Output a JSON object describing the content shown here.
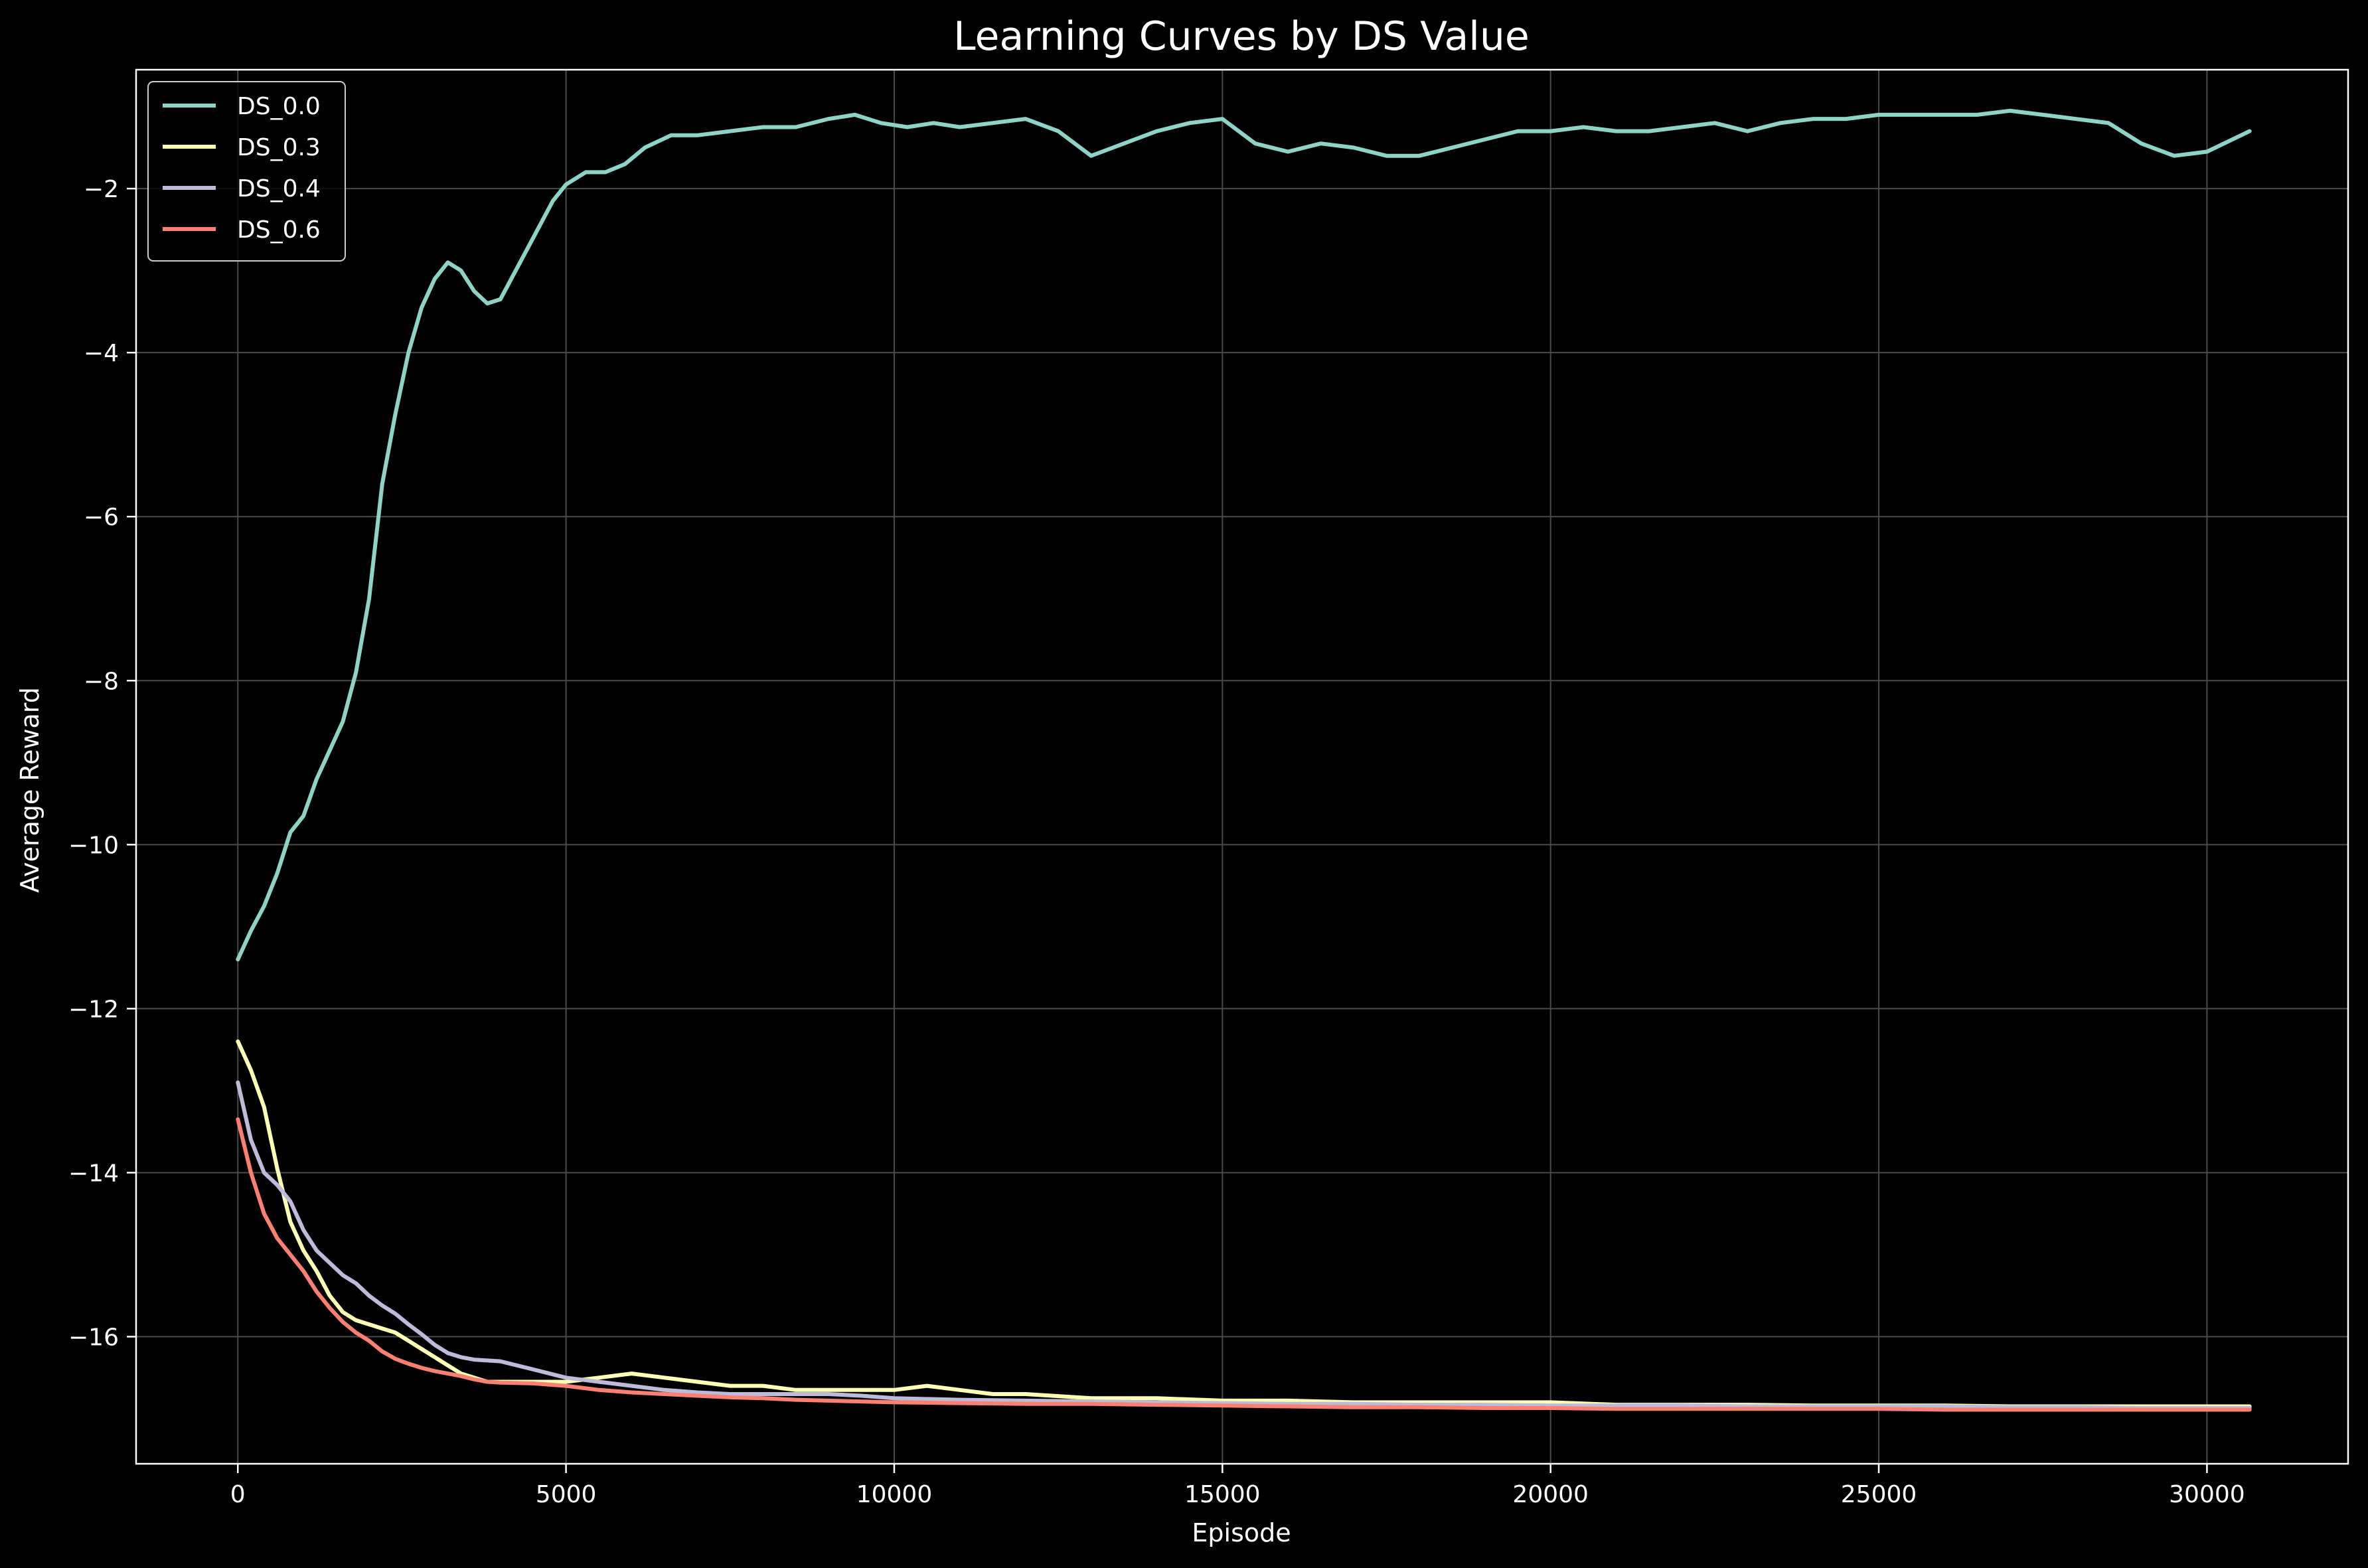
{
  "chart_data": {
    "type": "line",
    "title": "Learning Curves by DS Value",
    "xlabel": "Episode",
    "ylabel": "Average Reward",
    "xlim": [
      -1550,
      32150
    ],
    "ylim": [
      -17.55,
      -0.55
    ],
    "xticks": [
      0,
      5000,
      10000,
      15000,
      20000,
      25000,
      30000
    ],
    "yticks": [
      -16,
      -14,
      -12,
      -10,
      -8,
      -6,
      -4,
      -2
    ],
    "grid": true,
    "legend_position": "top-left",
    "background": "#000000",
    "series": [
      {
        "name": "DS_0.0",
        "color": "#8dd3c7",
        "x": [
          0,
          200,
          400,
          600,
          800,
          1000,
          1200,
          1400,
          1600,
          1800,
          2000,
          2200,
          2400,
          2600,
          2800,
          3000,
          3200,
          3400,
          3600,
          3800,
          4000,
          4200,
          4400,
          4600,
          4800,
          5000,
          5300,
          5600,
          5900,
          6200,
          6600,
          7000,
          7500,
          8000,
          8500,
          9000,
          9400,
          9800,
          10200,
          10600,
          11000,
          11500,
          12000,
          12500,
          13000,
          13500,
          14000,
          14500,
          15000,
          15500,
          16000,
          16500,
          17000,
          17500,
          18000,
          18500,
          19000,
          19500,
          20000,
          20500,
          21000,
          21500,
          22000,
          22500,
          23000,
          23500,
          24000,
          24500,
          25000,
          25500,
          26000,
          26500,
          27000,
          27500,
          28000,
          28500,
          29000,
          29500,
          30000,
          30650
        ],
        "y": [
          -11.4,
          -11.05,
          -10.75,
          -10.35,
          -9.85,
          -9.65,
          -9.2,
          -8.85,
          -8.5,
          -7.9,
          -7.0,
          -5.6,
          -4.75,
          -4.0,
          -3.45,
          -3.1,
          -2.9,
          -3.0,
          -3.25,
          -3.4,
          -3.35,
          -3.05,
          -2.75,
          -2.45,
          -2.15,
          -1.95,
          -1.8,
          -1.8,
          -1.7,
          -1.5,
          -1.35,
          -1.35,
          -1.3,
          -1.25,
          -1.25,
          -1.15,
          -1.1,
          -1.2,
          -1.25,
          -1.2,
          -1.25,
          -1.2,
          -1.15,
          -1.3,
          -1.6,
          -1.45,
          -1.3,
          -1.2,
          -1.15,
          -1.45,
          -1.55,
          -1.45,
          -1.5,
          -1.6,
          -1.6,
          -1.5,
          -1.4,
          -1.3,
          -1.3,
          -1.25,
          -1.3,
          -1.3,
          -1.25,
          -1.2,
          -1.3,
          -1.2,
          -1.15,
          -1.15,
          -1.1,
          -1.1,
          -1.1,
          -1.1,
          -1.05,
          -1.1,
          -1.15,
          -1.2,
          -1.45,
          -1.6,
          -1.55,
          -1.3
        ]
      },
      {
        "name": "DS_0.3",
        "color": "#ffffb3",
        "x": [
          0,
          200,
          400,
          600,
          800,
          1000,
          1200,
          1400,
          1600,
          1800,
          2000,
          2200,
          2400,
          2600,
          2800,
          3000,
          3200,
          3400,
          3600,
          3800,
          4000,
          4500,
          5000,
          5500,
          6000,
          6500,
          7000,
          7500,
          8000,
          8500,
          9000,
          9500,
          10000,
          10500,
          11000,
          11500,
          12000,
          13000,
          14000,
          15000,
          16000,
          17000,
          18000,
          19000,
          20000,
          21000,
          22000,
          23000,
          24000,
          25000,
          26000,
          27000,
          28000,
          29000,
          30000,
          30650
        ],
        "y": [
          -12.4,
          -12.75,
          -13.2,
          -13.95,
          -14.6,
          -14.95,
          -15.2,
          -15.5,
          -15.7,
          -15.8,
          -15.85,
          -15.9,
          -15.95,
          -16.05,
          -16.15,
          -16.25,
          -16.35,
          -16.45,
          -16.5,
          -16.55,
          -16.55,
          -16.55,
          -16.55,
          -16.5,
          -16.45,
          -16.5,
          -16.55,
          -16.6,
          -16.6,
          -16.65,
          -16.65,
          -16.65,
          -16.65,
          -16.6,
          -16.65,
          -16.7,
          -16.7,
          -16.75,
          -16.75,
          -16.78,
          -16.78,
          -16.8,
          -16.8,
          -16.8,
          -16.8,
          -16.83,
          -16.83,
          -16.83,
          -16.84,
          -16.84,
          -16.84,
          -16.85,
          -16.85,
          -16.85,
          -16.85,
          -16.85
        ]
      },
      {
        "name": "DS_0.4",
        "color": "#bebada",
        "x": [
          0,
          200,
          400,
          600,
          800,
          1000,
          1200,
          1400,
          1600,
          1800,
          2000,
          2200,
          2400,
          2600,
          2800,
          3000,
          3200,
          3400,
          3600,
          3800,
          4000,
          4500,
          5000,
          5500,
          6000,
          6500,
          7000,
          7500,
          8000,
          8500,
          9000,
          9500,
          10000,
          11000,
          12000,
          13000,
          14000,
          15000,
          16000,
          17000,
          18000,
          19000,
          20000,
          21000,
          22000,
          23000,
          24000,
          25000,
          26000,
          27000,
          28000,
          29000,
          30000,
          30650
        ],
        "y": [
          -12.9,
          -13.6,
          -14.0,
          -14.15,
          -14.35,
          -14.7,
          -14.95,
          -15.1,
          -15.25,
          -15.35,
          -15.5,
          -15.62,
          -15.72,
          -15.85,
          -15.97,
          -16.1,
          -16.2,
          -16.25,
          -16.28,
          -16.29,
          -16.3,
          -16.4,
          -16.5,
          -16.55,
          -16.6,
          -16.65,
          -16.68,
          -16.7,
          -16.7,
          -16.7,
          -16.7,
          -16.72,
          -16.75,
          -16.77,
          -16.78,
          -16.79,
          -16.8,
          -16.81,
          -16.82,
          -16.82,
          -16.83,
          -16.83,
          -16.84,
          -16.84,
          -16.84,
          -16.85,
          -16.85,
          -16.85,
          -16.85,
          -16.86,
          -16.86,
          -16.87,
          -16.87,
          -16.87
        ]
      },
      {
        "name": "DS_0.6",
        "color": "#fb8072",
        "x": [
          0,
          200,
          400,
          600,
          800,
          1000,
          1200,
          1400,
          1600,
          1800,
          2000,
          2200,
          2400,
          2600,
          2800,
          3000,
          3200,
          3400,
          3600,
          3800,
          4000,
          4500,
          5000,
          5500,
          6000,
          6500,
          7000,
          7500,
          8000,
          8500,
          9000,
          10000,
          11000,
          12000,
          13000,
          14000,
          15000,
          16000,
          17000,
          18000,
          19000,
          20000,
          21000,
          22000,
          23000,
          24000,
          25000,
          26000,
          27000,
          28000,
          29000,
          30000,
          30650
        ],
        "y": [
          -13.35,
          -14.0,
          -14.5,
          -14.8,
          -15.0,
          -15.2,
          -15.45,
          -15.65,
          -15.82,
          -15.95,
          -16.05,
          -16.18,
          -16.27,
          -16.33,
          -16.38,
          -16.42,
          -16.45,
          -16.48,
          -16.52,
          -16.55,
          -16.56,
          -16.57,
          -16.6,
          -16.65,
          -16.68,
          -16.7,
          -16.72,
          -16.74,
          -16.75,
          -16.77,
          -16.78,
          -16.8,
          -16.81,
          -16.82,
          -16.82,
          -16.83,
          -16.84,
          -16.85,
          -16.86,
          -16.86,
          -16.87,
          -16.87,
          -16.88,
          -16.88,
          -16.88,
          -16.88,
          -16.88,
          -16.89,
          -16.89,
          -16.89,
          -16.89,
          -16.89,
          -16.89
        ]
      }
    ]
  }
}
